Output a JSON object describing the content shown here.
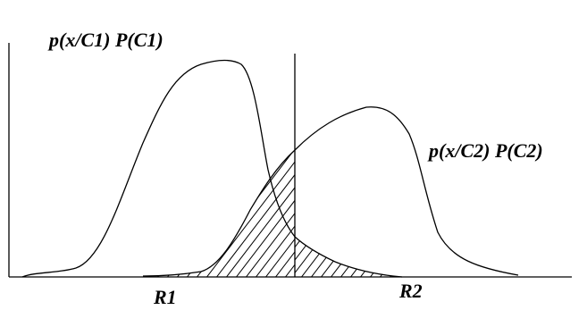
{
  "labels": {
    "class1": "p(x/C1) P(C1)",
    "class2": "p(x/C2) P(C2)",
    "region1": "R1",
    "region2": "R2"
  },
  "colors": {
    "ink": "#000000",
    "background": "#ffffff"
  }
}
